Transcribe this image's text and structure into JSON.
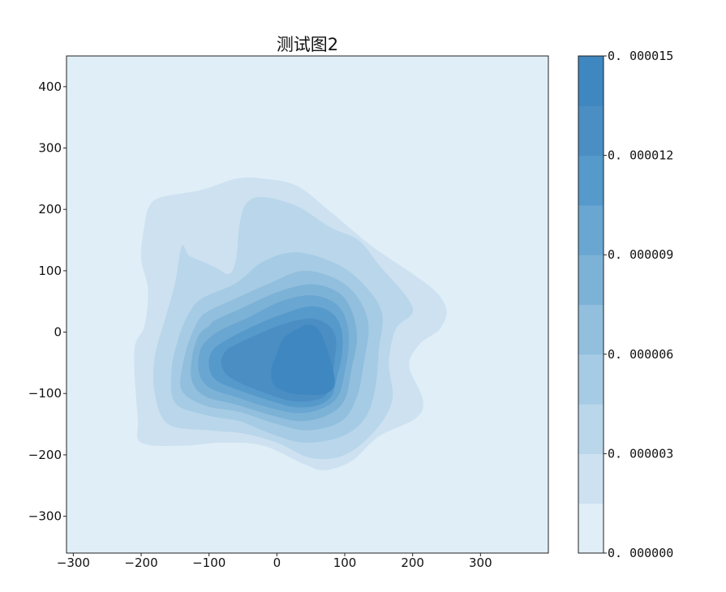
{
  "chart_data": {
    "type": "heatmap",
    "subtype": "kde_filled_contour",
    "title": "测试图2",
    "xlabel": "",
    "ylabel": "",
    "xlim": [
      -310,
      400
    ],
    "ylim": [
      -360,
      450
    ],
    "x_ticks": [
      -300,
      -200,
      -100,
      0,
      100,
      200,
      300
    ],
    "x_tick_labels": [
      "−300",
      "−200",
      "−100",
      "0",
      "100",
      "200",
      "300"
    ],
    "y_ticks": [
      400,
      300,
      200,
      100,
      0,
      -100,
      -200,
      -300
    ],
    "y_tick_labels": [
      "400",
      "300",
      "200",
      "100",
      "0",
      "−100",
      "−200",
      "−300"
    ],
    "grid": false,
    "colormap": "Blues",
    "density_range": [
      0,
      1.5e-05
    ],
    "level_count": 10,
    "level_colors": [
      "#e0eef7",
      "#cde1f1",
      "#b9d6ea",
      "#a6cbe4",
      "#91bfdd",
      "#7db2d7",
      "#69a6d1",
      "#5699cb",
      "#4a8ec4",
      "#3f87c0"
    ],
    "colorbar": {
      "position": "right",
      "ticks": [
        0.0,
        3e-06,
        6e-06,
        9e-06,
        1.2e-05,
        1.5e-05
      ],
      "tick_labels": [
        "0. 000000",
        "0. 000003",
        "0. 000006",
        "0. 000009",
        "0. 000012",
        "0. 000015"
      ]
    },
    "contours": [
      {
        "level": 1,
        "points": [
          [
            -195,
            175
          ],
          [
            -188,
            205
          ],
          [
            -170,
            220
          ],
          [
            -110,
            232
          ],
          [
            -60,
            250
          ],
          [
            -20,
            250
          ],
          [
            30,
            238
          ],
          [
            80,
            195
          ],
          [
            140,
            140
          ],
          [
            200,
            95
          ],
          [
            235,
            65
          ],
          [
            250,
            35
          ],
          [
            240,
            5
          ],
          [
            210,
            -20
          ],
          [
            195,
            -55
          ],
          [
            215,
            -110
          ],
          [
            205,
            -140
          ],
          [
            150,
            -170
          ],
          [
            110,
            -210
          ],
          [
            70,
            -225
          ],
          [
            40,
            -215
          ],
          [
            -20,
            -185
          ],
          [
            -80,
            -180
          ],
          [
            -140,
            -185
          ],
          [
            -200,
            -180
          ],
          [
            -205,
            -140
          ],
          [
            -210,
            -30
          ],
          [
            -195,
            10
          ],
          [
            -190,
            70
          ],
          [
            -200,
            120
          ]
        ]
      },
      {
        "level": 2,
        "points": [
          [
            -140,
            140
          ],
          [
            -130,
            125
          ],
          [
            -110,
            115
          ],
          [
            -90,
            105
          ],
          [
            -70,
            95
          ],
          [
            -60,
            120
          ],
          [
            -55,
            175
          ],
          [
            -45,
            210
          ],
          [
            -20,
            220
          ],
          [
            30,
            205
          ],
          [
            80,
            170
          ],
          [
            120,
            150
          ],
          [
            150,
            110
          ],
          [
            200,
            40
          ],
          [
            175,
            5
          ],
          [
            165,
            -50
          ],
          [
            170,
            -110
          ],
          [
            145,
            -160
          ],
          [
            100,
            -200
          ],
          [
            50,
            -205
          ],
          [
            0,
            -180
          ],
          [
            -50,
            -165
          ],
          [
            -100,
            -160
          ],
          [
            -160,
            -150
          ],
          [
            -180,
            -100
          ],
          [
            -180,
            -40
          ],
          [
            -165,
            20
          ],
          [
            -150,
            80
          ]
        ]
      },
      {
        "level": 3,
        "points": [
          [
            -110,
            55
          ],
          [
            -60,
            80
          ],
          [
            -20,
            115
          ],
          [
            30,
            130
          ],
          [
            90,
            110
          ],
          [
            130,
            75
          ],
          [
            155,
            30
          ],
          [
            150,
            -30
          ],
          [
            145,
            -90
          ],
          [
            130,
            -140
          ],
          [
            95,
            -170
          ],
          [
            40,
            -180
          ],
          [
            -10,
            -165
          ],
          [
            -55,
            -145
          ],
          [
            -105,
            -135
          ],
          [
            -150,
            -115
          ],
          [
            -155,
            -60
          ],
          [
            -145,
            -10
          ],
          [
            -130,
            30
          ]
        ]
      },
      {
        "level": 4,
        "points": [
          [
            -100,
            35
          ],
          [
            -60,
            55
          ],
          [
            -10,
            80
          ],
          [
            40,
            100
          ],
          [
            90,
            85
          ],
          [
            120,
            55
          ],
          [
            135,
            10
          ],
          [
            128,
            -50
          ],
          [
            118,
            -105
          ],
          [
            95,
            -145
          ],
          [
            45,
            -160
          ],
          [
            -5,
            -148
          ],
          [
            -55,
            -130
          ],
          [
            -105,
            -120
          ],
          [
            -140,
            -95
          ],
          [
            -138,
            -50
          ],
          [
            -128,
            -10
          ],
          [
            -115,
            20
          ]
        ]
      },
      {
        "level": 5,
        "points": [
          [
            -90,
            20
          ],
          [
            -50,
            40
          ],
          [
            0,
            65
          ],
          [
            50,
            78
          ],
          [
            90,
            65
          ],
          [
            110,
            35
          ],
          [
            118,
            -10
          ],
          [
            110,
            -60
          ],
          [
            100,
            -110
          ],
          [
            75,
            -135
          ],
          [
            35,
            -145
          ],
          [
            -10,
            -135
          ],
          [
            -60,
            -118
          ],
          [
            -105,
            -105
          ],
          [
            -125,
            -80
          ],
          [
            -125,
            -40
          ],
          [
            -115,
            -5
          ],
          [
            -100,
            10
          ]
        ]
      },
      {
        "level": 6,
        "points": [
          [
            -80,
            5
          ],
          [
            -40,
            25
          ],
          [
            5,
            50
          ],
          [
            50,
            60
          ],
          [
            85,
            48
          ],
          [
            102,
            20
          ],
          [
            106,
            -20
          ],
          [
            100,
            -65
          ],
          [
            90,
            -105
          ],
          [
            65,
            -125
          ],
          [
            30,
            -132
          ],
          [
            -15,
            -122
          ],
          [
            -60,
            -106
          ],
          [
            -100,
            -90
          ],
          [
            -115,
            -65
          ],
          [
            -113,
            -30
          ],
          [
            -100,
            -10
          ]
        ]
      },
      {
        "level": 7,
        "points": [
          [
            -70,
            -10
          ],
          [
            -30,
            12
          ],
          [
            10,
            30
          ],
          [
            50,
            42
          ],
          [
            80,
            32
          ],
          [
            95,
            5
          ],
          [
            96,
            -35
          ],
          [
            88,
            -75
          ],
          [
            80,
            -105
          ],
          [
            58,
            -120
          ],
          [
            25,
            -122
          ],
          [
            -15,
            -110
          ],
          [
            -55,
            -95
          ],
          [
            -90,
            -78
          ],
          [
            -100,
            -55
          ],
          [
            -95,
            -30
          ]
        ]
      },
      {
        "level": 8,
        "points": [
          [
            -60,
            -20
          ],
          [
            -25,
            -2
          ],
          [
            15,
            15
          ],
          [
            50,
            22
          ],
          [
            75,
            12
          ],
          [
            87,
            -10
          ],
          [
            85,
            -45
          ],
          [
            80,
            -80
          ],
          [
            72,
            -103
          ],
          [
            50,
            -112
          ],
          [
            20,
            -112
          ],
          [
            -15,
            -100
          ],
          [
            -50,
            -85
          ],
          [
            -75,
            -68
          ],
          [
            -82,
            -48
          ],
          [
            -75,
            -30
          ]
        ]
      },
      {
        "level": 9,
        "points": [
          [
            10,
            -10
          ],
          [
            30,
            5
          ],
          [
            45,
            12
          ],
          [
            58,
            8
          ],
          [
            68,
            -10
          ],
          [
            80,
            -50
          ],
          [
            85,
            -85
          ],
          [
            72,
            -100
          ],
          [
            45,
            -102
          ],
          [
            15,
            -98
          ],
          [
            -5,
            -85
          ],
          [
            -8,
            -60
          ],
          [
            0,
            -35
          ]
        ]
      }
    ]
  }
}
